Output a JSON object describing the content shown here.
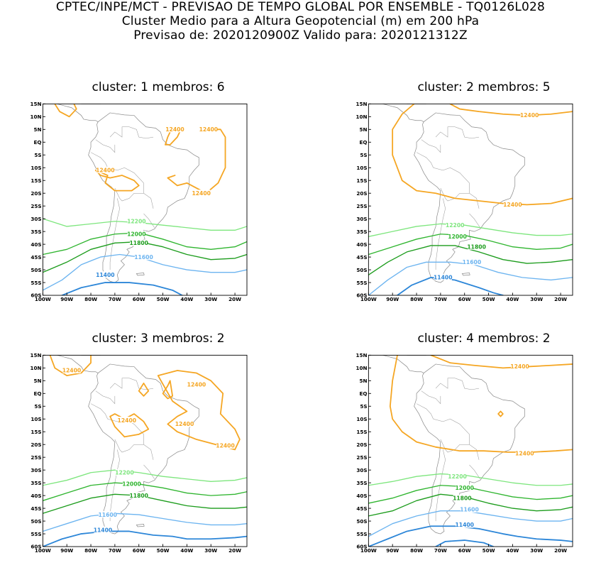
{
  "header": {
    "line1": "CPTEC/INPE/MCT - PREVISAO DE TEMPO GLOBAL POR ENSEMBLE - TQ0126L028",
    "line2": "Cluster Medio para a Altura Geopotencial (m) em 200 hPa",
    "line3": "Previsao de: 2020120900Z    Valido para: 2020121312Z"
  },
  "axes": {
    "lat_ticks": [
      "15N",
      "10N",
      "5N",
      "EQ",
      "5S",
      "10S",
      "15S",
      "20S",
      "25S",
      "30S",
      "35S",
      "40S",
      "45S",
      "50S",
      "55S",
      "60S"
    ],
    "lon_ticks": [
      "100W",
      "90W",
      "80W",
      "70W",
      "60W",
      "50W",
      "40W",
      "30W",
      "20W"
    ]
  },
  "colors": {
    "c12400": "#f5a623",
    "c12200": "#7ee67e",
    "c12000": "#2fb52f",
    "c11800": "#1c9c1c",
    "c11600": "#6cb4f0",
    "c11400": "#2c86d8",
    "coast": "#8a8a8a"
  },
  "panels": [
    {
      "title": "cluster: 1   membros: 6",
      "labels": [
        "12400",
        "12400",
        "12400",
        "12400",
        "12200",
        "12000",
        "11800",
        "11600",
        "11400"
      ]
    },
    {
      "title": "cluster: 2   membros: 5",
      "labels": [
        "12400",
        "12400",
        "12200",
        "12000",
        "11800",
        "11600",
        "11400"
      ]
    },
    {
      "title": "cluster: 3   membros: 2",
      "labels": [
        "12400",
        "12400",
        "12400",
        "12400",
        "12400",
        "12200",
        "12000",
        "11800",
        "11600",
        "11400"
      ]
    },
    {
      "title": "cluster: 4   membros: 2",
      "labels": [
        "12400",
        "12400",
        "12200",
        "12000",
        "11800",
        "11600",
        "11400"
      ]
    }
  ]
}
